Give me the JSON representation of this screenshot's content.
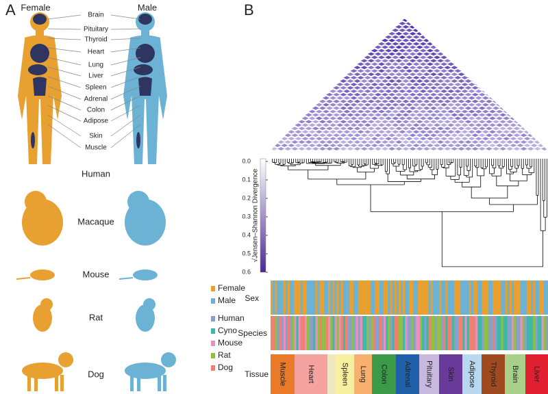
{
  "panels": {
    "a": "A",
    "b": "B"
  },
  "human": {
    "female": "Female",
    "male": "Male",
    "female_color": "#e8a030",
    "male_color": "#6bb2d4",
    "organs": [
      "Brain",
      "Pituitary",
      "Thyroid",
      "Heart",
      "Lung",
      "Liver",
      "Spleen",
      "Adrenal",
      "Colon",
      "Adipose",
      "Skin",
      "Muscle"
    ]
  },
  "species": [
    "Human",
    "Macaque",
    "Mouse",
    "Rat",
    "Dog"
  ],
  "divergence_axis": {
    "label": "√Jensen–Shannon Divergence",
    "lim": [
      0,
      0.6
    ],
    "ticks": [
      {
        "value": 0,
        "label": "0.0"
      },
      0.1,
      0.2,
      0.3,
      0.4,
      0.5,
      0.6
    ]
  },
  "legend": {
    "sex": [
      {
        "name": "Female",
        "color": "#e8a030"
      },
      {
        "name": "Male",
        "color": "#6bb2d4"
      }
    ],
    "species": [
      {
        "name": "Human",
        "color": "#8aa0c8"
      },
      {
        "name": "Cyno",
        "color": "#40b8a8"
      },
      {
        "name": "Mouse",
        "color": "#e890c0"
      },
      {
        "name": "Rat",
        "color": "#90c040"
      },
      {
        "name": "Dog",
        "color": "#f08070"
      }
    ]
  },
  "rows": {
    "sex": "Sex",
    "species": "Species",
    "tissue": "Tissue"
  },
  "tissues": [
    {
      "name": "Muscle",
      "color": "#e87a2a"
    },
    {
      "name": "Heart",
      "color": "#f4a3a0"
    },
    {
      "name": "Spleen",
      "color": "#f8f0a0"
    },
    {
      "name": "Lung",
      "color": "#f8b070"
    },
    {
      "name": "Colon",
      "color": "#3a9a48"
    },
    {
      "name": "Adrenal",
      "color": "#2060a8"
    },
    {
      "name": "Pituitary",
      "color": "#c8b8e0"
    },
    {
      "name": "Skin",
      "color": "#6a3a9a"
    },
    {
      "name": "Adipose",
      "color": "#b8d8f0"
    },
    {
      "name": "Thyroid",
      "color": "#a04a20"
    },
    {
      "name": "Brain",
      "color": "#a8d088"
    },
    {
      "name": "Liver",
      "color": "#e02030"
    }
  ]
}
